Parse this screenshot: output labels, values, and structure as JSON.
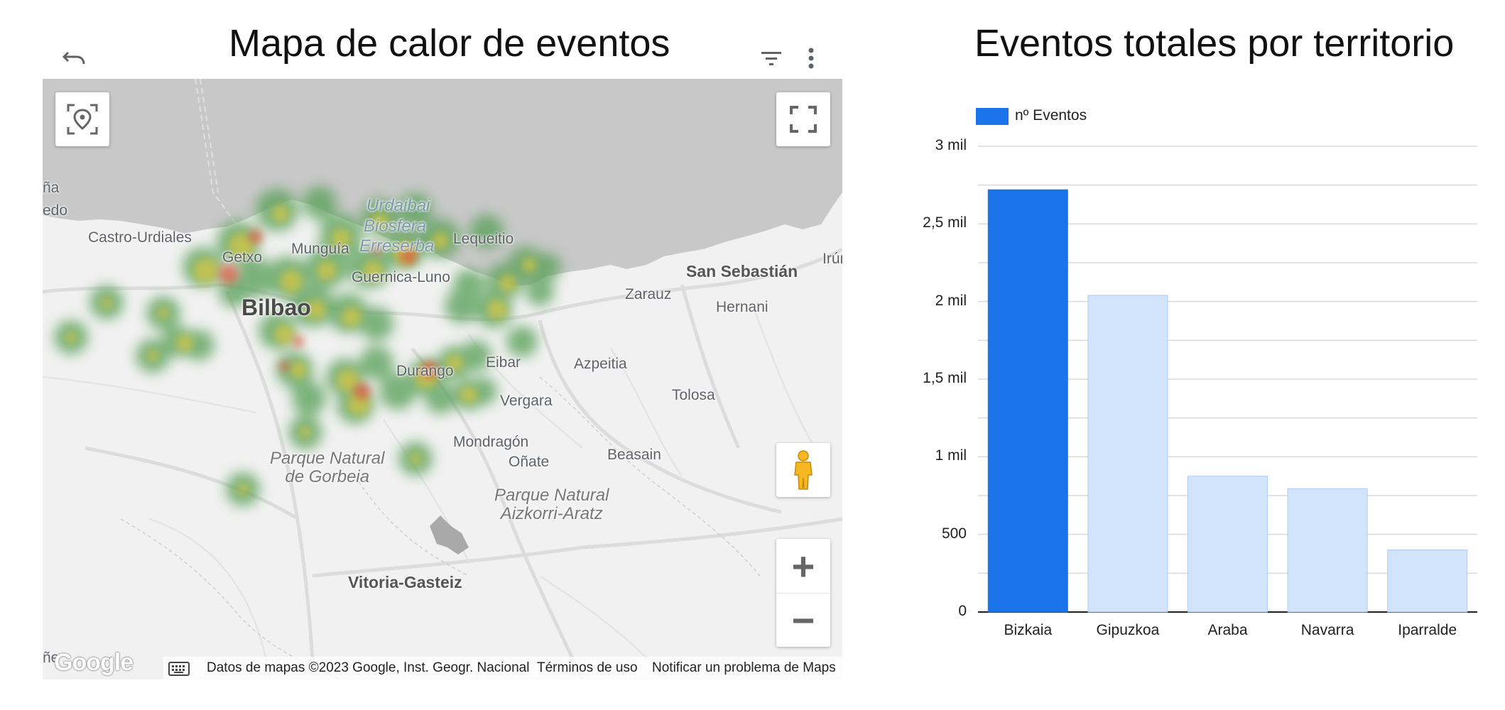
{
  "map_panel": {
    "title": "Mapa de calor de eventos",
    "undo_icon": "undo-icon",
    "filter_icon": "filter-icon",
    "more_icon": "more-vert-icon",
    "locate_icon": "my-location-icon",
    "fullscreen_icon": "fullscreen-icon",
    "pegman_icon": "street-view-pegman-icon",
    "zoom_in_label": "+",
    "zoom_out_label": "−",
    "labels": {
      "edge1": "ña",
      "edge2": "edo",
      "castro": "Castro-Urdiales",
      "getxo": "Getxo",
      "mungia": "Munguía",
      "urdaibai": "Urdaibai",
      "biosfera": "Biosfera",
      "erreserba": "Erreserba",
      "lequeitio": "Lequeitio",
      "guernica": "Guernica-Luno",
      "bilbao": "Bilbao",
      "san_sebastian": "San Sebastián",
      "irun": "Irún",
      "zarauz": "Zarauz",
      "hernani": "Hernani",
      "durango": "Durango",
      "eibar": "Eibar",
      "azpeitia": "Azpeitia",
      "vergara": "Vergara",
      "tolosa": "Tolosa",
      "mondragon": "Mondragón",
      "onate": "Oñate",
      "beasain": "Beasain",
      "gorbeia": "Parque Natural\nde Gorbeia",
      "aizkorri": "Parque Natural\nAizkorri-Aratz",
      "vitoria": "Vitoria-Gasteiz",
      "edge3": "ñe"
    },
    "google_logo": "Google",
    "keyboard_icon": "keyboard-icon",
    "attribution": "Datos de mapas ©2023 Google, Inst. Geogr. Nacional",
    "terms": "Términos de uso",
    "report": "Notificar un problema de Maps"
  },
  "bar_panel": {
    "title": "Eventos totales por territorio"
  },
  "chart_data": {
    "type": "bar",
    "title": "Eventos totales por territorio",
    "legend": "nº Eventos",
    "legend_position": "top-left",
    "categories": [
      "Bizkaia",
      "Gipuzkoa",
      "Araba",
      "Navarra",
      "Iparralde"
    ],
    "series": [
      {
        "name": "nº Eventos",
        "values": [
          2720,
          2040,
          875,
          795,
          400
        ]
      }
    ],
    "highlighted": "Bizkaia",
    "ylim": [
      0,
      3000
    ],
    "yticks": [
      0,
      500,
      1000,
      1500,
      2000,
      2500,
      3000
    ],
    "ytick_labels": [
      "0",
      "500",
      "1 mil",
      "1,5 mil",
      "2 mil",
      "2,5 mil",
      "3 mil"
    ],
    "grid": true,
    "colors": {
      "highlight": "#1a73e8",
      "other": "#d2e3fc",
      "other_border": "#aecbfa"
    }
  }
}
